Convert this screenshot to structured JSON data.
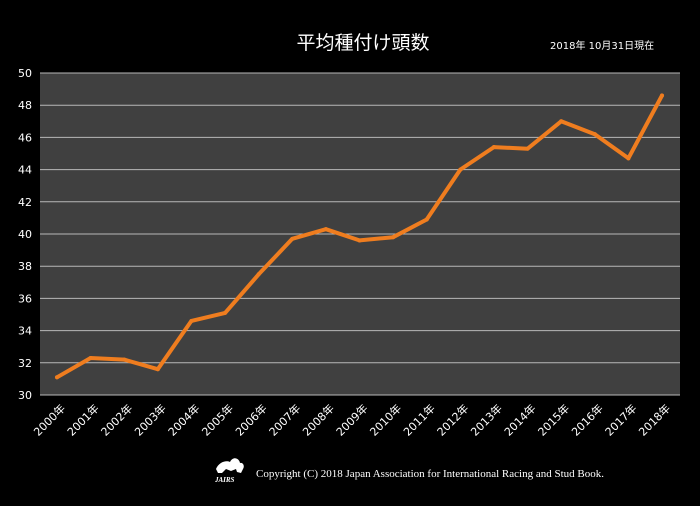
{
  "header": {
    "date_note": "2018年 10月31日現在"
  },
  "footer": {
    "logo_text": "JAIRS",
    "copyright": "Copyright (C) 2018 Japan Association for International Racing and Stud Book."
  },
  "colors": {
    "background": "#000000",
    "plot_area": "#404040",
    "gridline": "#b8b8b8",
    "line": "#ef7d1f",
    "text": "#ffffff"
  },
  "chart_data": {
    "type": "line",
    "title": "平均種付け頭数",
    "xlabel": "",
    "ylabel": "",
    "categories": [
      "2000年",
      "2001年",
      "2002年",
      "2003年",
      "2004年",
      "2005年",
      "2006年",
      "2007年",
      "2008年",
      "2009年",
      "2010年",
      "2011年",
      "2012年",
      "2013年",
      "2014年",
      "2015年",
      "2016年",
      "2017年",
      "2018年"
    ],
    "series": [
      {
        "values": [
          31.1,
          32.3,
          32.2,
          31.6,
          34.6,
          35.1,
          37.5,
          39.7,
          40.3,
          39.6,
          39.8,
          40.9,
          44.0,
          45.4,
          45.3,
          47.0,
          46.2,
          44.7,
          48.6
        ]
      }
    ],
    "ylim": [
      30,
      50
    ],
    "yticks": [
      "30",
      "32",
      "34",
      "36",
      "38",
      "40",
      "42",
      "44",
      "46",
      "48",
      "50"
    ],
    "grid": true,
    "legend": "none"
  }
}
